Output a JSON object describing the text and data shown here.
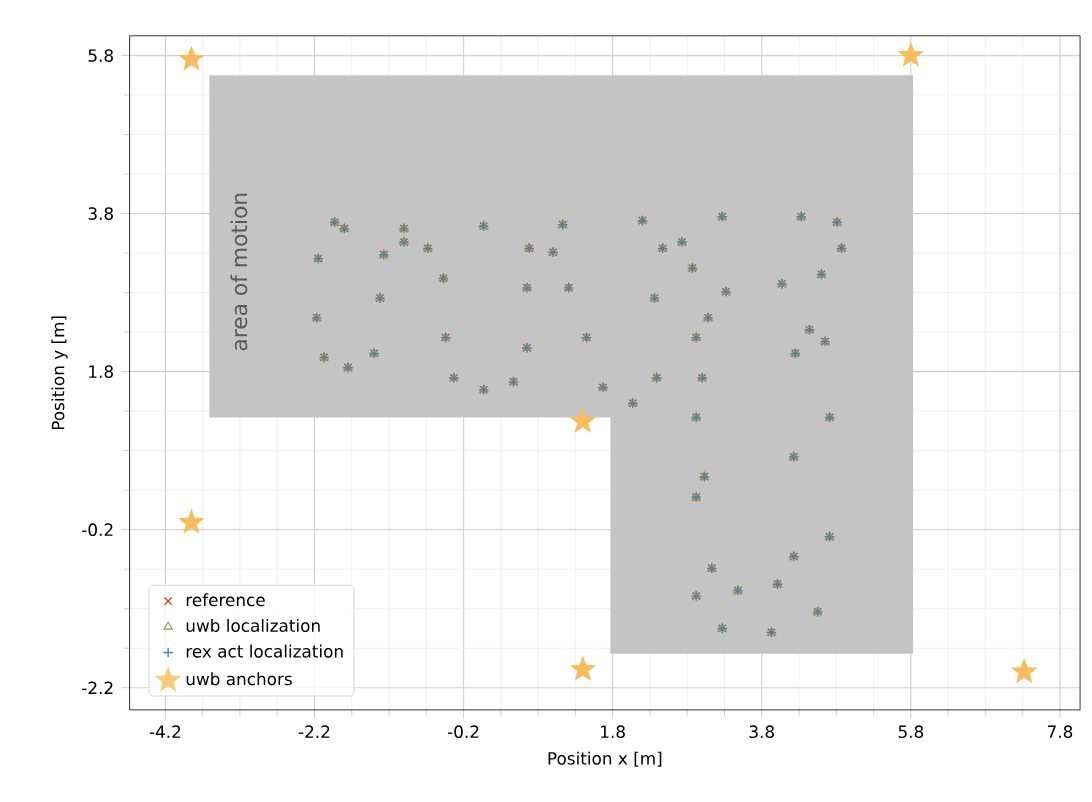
{
  "chart_data": {
    "type": "scatter",
    "xlabel": "Position x [m]",
    "ylabel": "Position y [m]",
    "xlim": [
      -4.68,
      8.07
    ],
    "ylim": [
      -2.48,
      6.05
    ],
    "xticks": [
      -4.2,
      -2.2,
      -0.2,
      1.8,
      3.8,
      5.8,
      7.8
    ],
    "yticks": [
      -2.2,
      -0.2,
      1.8,
      3.8,
      5.8
    ],
    "grid": true,
    "legend": "bottom left",
    "annotations": [
      "area of motion"
    ],
    "series": [
      {
        "type": "area",
        "color": "#c4c4c4",
        "x": [
          -3.61,
          5.83,
          5.83,
          1.77,
          1.77,
          -3.61
        ],
        "values": [
          5.55,
          5.55,
          -1.77,
          -1.77,
          1.22,
          1.22
        ]
      },
      {
        "name": "reference",
        "color": "#d9452b",
        "marker": "cross",
        "x": [
          -1.93,
          -2.15,
          -2.17,
          -2.07,
          -1.75,
          -1.4,
          -1.32,
          -1.27,
          -1.0,
          -0.68,
          -0.47,
          -0.44,
          -0.33,
          0.07,
          0.47,
          0.65,
          0.65,
          0.68,
          1.0,
          1.21,
          1.45,
          1.67,
          2.07,
          2.39,
          2.36,
          2.47,
          2.73,
          2.87,
          2.92,
          2.92,
          2.92,
          2.92,
          3.27,
          3.93,
          4.55,
          4.71,
          4.71,
          4.65,
          4.44,
          4.25,
          4.23,
          4.23,
          4.01,
          3.48,
          3.13,
          3.03,
          3.0,
          3.08,
          3.32,
          4.07,
          4.6,
          4.87,
          4.81,
          4.33,
          3.27,
          2.2,
          1.13,
          0.07,
          -1.0,
          -1.8
        ],
        "values": [
          3.69,
          3.23,
          2.48,
          1.98,
          1.85,
          2.03,
          2.73,
          3.28,
          3.44,
          3.36,
          2.98,
          2.23,
          1.72,
          1.57,
          1.67,
          2.1,
          2.86,
          3.36,
          3.31,
          2.86,
          2.23,
          1.6,
          1.4,
          1.72,
          2.73,
          3.36,
          3.44,
          3.11,
          2.23,
          1.22,
          0.21,
          -1.04,
          -1.45,
          -1.5,
          -1.24,
          -0.29,
          1.22,
          2.18,
          2.33,
          2.03,
          0.72,
          -0.54,
          -0.89,
          -0.97,
          -0.69,
          0.47,
          1.72,
          2.48,
          2.81,
          2.91,
          3.03,
          3.36,
          3.69,
          3.76,
          3.76,
          3.71,
          3.66,
          3.64,
          3.61,
          3.61
        ]
      },
      {
        "name": "uwb localization",
        "color": "#8ca252",
        "marker": "triangle",
        "x": [
          -1.93,
          -2.15,
          -2.17,
          -2.07,
          -1.75,
          -1.4,
          -1.32,
          -1.27,
          -1.0,
          -0.68,
          -0.47,
          -0.44,
          -0.33,
          0.07,
          0.47,
          0.65,
          0.65,
          0.68,
          1.0,
          1.21,
          1.45,
          1.67,
          2.07,
          2.39,
          2.36,
          2.47,
          2.73,
          2.87,
          2.92,
          2.92,
          2.92,
          2.92,
          3.27,
          3.93,
          4.55,
          4.71,
          4.71,
          4.65,
          4.44,
          4.25,
          4.23,
          4.23,
          4.01,
          3.48,
          3.13,
          3.03,
          3.0,
          3.08,
          3.32,
          4.07,
          4.6,
          4.87,
          4.81,
          4.33,
          3.27,
          2.2,
          1.13,
          0.07,
          -1.0,
          -1.8
        ],
        "values": [
          3.69,
          3.23,
          2.48,
          1.98,
          1.85,
          2.03,
          2.73,
          3.28,
          3.44,
          3.36,
          2.98,
          2.23,
          1.72,
          1.57,
          1.67,
          2.1,
          2.86,
          3.36,
          3.31,
          2.86,
          2.23,
          1.6,
          1.4,
          1.72,
          2.73,
          3.36,
          3.44,
          3.11,
          2.23,
          1.22,
          0.21,
          -1.04,
          -1.45,
          -1.5,
          -1.24,
          -0.29,
          1.22,
          2.18,
          2.33,
          2.03,
          0.72,
          -0.54,
          -0.89,
          -0.97,
          -0.69,
          0.47,
          1.72,
          2.48,
          2.81,
          2.91,
          3.03,
          3.36,
          3.69,
          3.76,
          3.76,
          3.71,
          3.66,
          3.64,
          3.61,
          3.61
        ]
      },
      {
        "name": "rex act localization",
        "color": "#3f88bd",
        "marker": "plus",
        "x": [
          -1.93,
          -2.15,
          -2.17,
          -2.07,
          -1.75,
          -1.4,
          -1.32,
          -1.27,
          -1.0,
          -0.68,
          -0.47,
          -0.44,
          -0.33,
          0.07,
          0.47,
          0.65,
          0.65,
          0.68,
          1.0,
          1.21,
          1.45,
          1.67,
          2.07,
          2.39,
          2.36,
          2.47,
          2.73,
          2.87,
          2.92,
          2.92,
          2.92,
          2.92,
          3.27,
          3.93,
          4.55,
          4.71,
          4.71,
          4.65,
          4.44,
          4.25,
          4.23,
          4.23,
          4.01,
          3.48,
          3.13,
          3.03,
          3.0,
          3.08,
          3.32,
          4.07,
          4.6,
          4.87,
          4.81,
          4.33,
          3.27,
          2.2,
          1.13,
          0.07,
          -1.0,
          -1.8
        ],
        "values": [
          3.69,
          3.23,
          2.48,
          1.98,
          1.85,
          2.03,
          2.73,
          3.28,
          3.44,
          3.36,
          2.98,
          2.23,
          1.72,
          1.57,
          1.67,
          2.1,
          2.86,
          3.36,
          3.31,
          2.86,
          2.23,
          1.6,
          1.4,
          1.72,
          2.73,
          3.36,
          3.44,
          3.11,
          2.23,
          1.22,
          0.21,
          -1.04,
          -1.45,
          -1.5,
          -1.24,
          -0.29,
          1.22,
          2.18,
          2.33,
          2.03,
          0.72,
          -0.54,
          -0.89,
          -0.97,
          -0.69,
          0.47,
          1.72,
          2.48,
          2.81,
          2.91,
          3.03,
          3.36,
          3.69,
          3.76,
          3.76,
          3.71,
          3.66,
          3.64,
          3.61,
          3.61
        ]
      },
      {
        "name": "uwb anchors",
        "color": "#f9bc5a",
        "marker": "star",
        "x": [
          -3.85,
          5.8,
          1.4,
          -3.85,
          1.4,
          7.32
        ],
        "values": [
          5.75,
          5.8,
          1.17,
          -0.11,
          -1.97,
          -2.0
        ]
      }
    ]
  }
}
